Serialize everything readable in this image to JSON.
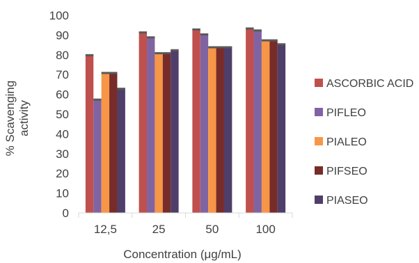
{
  "chart_data": {
    "type": "bar",
    "title": "",
    "xlabel": "Concentration (μg/mL)",
    "ylabel_lines": [
      "% Scavenging",
      "activity"
    ],
    "categories": [
      "12,5",
      "25",
      "50",
      "100"
    ],
    "ylim": [
      0,
      100
    ],
    "yticks": [
      0,
      10,
      20,
      30,
      40,
      50,
      60,
      70,
      80,
      90,
      100
    ],
    "grid": false,
    "legend_position": "right",
    "series": [
      {
        "name": "ASCORBIC ACID",
        "color": "#c0504d",
        "values": [
          80,
          91.5,
          93,
          93.5
        ]
      },
      {
        "name": "PIFLEO",
        "color": "#8064a2",
        "values": [
          57.5,
          89,
          90.5,
          92.5
        ]
      },
      {
        "name": "PIALEO",
        "color": "#f79646",
        "values": [
          71,
          81,
          84,
          87.5
        ]
      },
      {
        "name": "PIFSEO",
        "color": "#772c2a",
        "values": [
          71,
          81,
          84,
          87.5
        ]
      },
      {
        "name": "PIASEO",
        "color": "#4f3e69",
        "values": [
          63,
          82.5,
          84,
          85.5
        ]
      }
    ]
  }
}
